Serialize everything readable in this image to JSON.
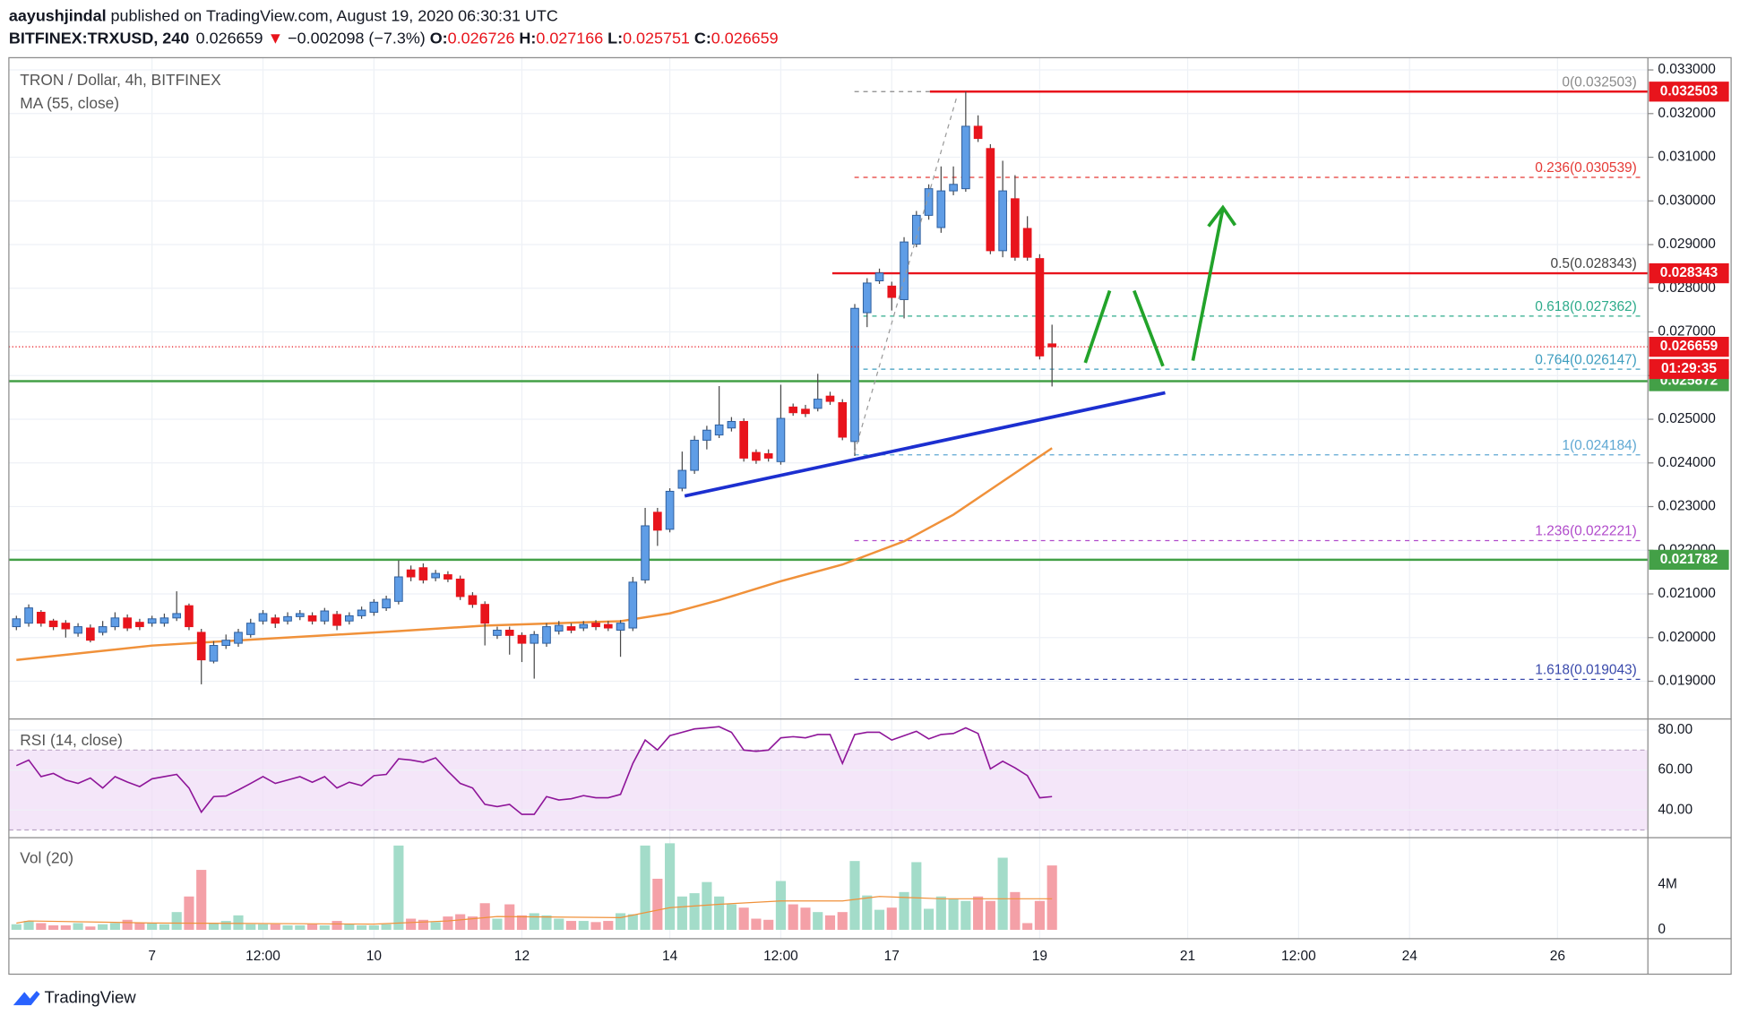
{
  "header": {
    "author": "aayushjindal",
    "published": " published on TradingView.com, August 19, 2020 06:30:31 UTC",
    "symbol": "BITFINEX:TRXUSD, 240",
    "arrow": "▼",
    "change": "−0.002098 (−7.3%)",
    "o": "O:",
    "h": "H:",
    "l": "L:",
    "c": "C:"
  },
  "footer": {
    "brand": "TradingView"
  },
  "chart_data": {
    "type": "candlestick",
    "title": "TRON / Dollar, 4h, BITFINEX",
    "up_color": "#5f9de6",
    "up_border": "#2f5f9e",
    "down_color": "#e8141c",
    "wick_color": "#4a4a4a",
    "x": [
      -11,
      -10,
      -9,
      -8,
      -7,
      -6,
      -5,
      -4,
      -3,
      -2,
      -1,
      0,
      1,
      2,
      3,
      4,
      5,
      6,
      7,
      8,
      9,
      10,
      11,
      12,
      13,
      14,
      15,
      16,
      17,
      18,
      19,
      20,
      21,
      22,
      23,
      24,
      25,
      26,
      27,
      28,
      29,
      30,
      31,
      32,
      33,
      34,
      35,
      36,
      37,
      38,
      39,
      40,
      41,
      42,
      43,
      44,
      45,
      46,
      47,
      48,
      49,
      50,
      51,
      52,
      53,
      54,
      55,
      56,
      57,
      58,
      59,
      60,
      61,
      62,
      63,
      64,
      65,
      66,
      67,
      68,
      69,
      70,
      71,
      72,
      73
    ],
    "open": [
      0.02025,
      0.02033,
      0.02058,
      0.02038,
      0.02033,
      0.0201,
      0.02022,
      0.02012,
      0.02025,
      0.02045,
      0.02035,
      0.02033,
      0.02033,
      0.02045,
      0.02073,
      0.02012,
      0.01946,
      0.01982,
      0.01987,
      0.02007,
      0.02038,
      0.02045,
      0.02038,
      0.02048,
      0.0205,
      0.02038,
      0.02053,
      0.02038,
      0.0205,
      0.02058,
      0.02068,
      0.02083,
      0.02155,
      0.0216,
      0.02137,
      0.02144,
      0.02134,
      0.02096,
      0.02076,
      0.02005,
      0.02017,
      0.02005,
      0.01987,
      0.01987,
      0.02015,
      0.02025,
      0.02022,
      0.02033,
      0.0203,
      0.02017,
      0.02022,
      0.02132,
      0.02287,
      0.02248,
      0.02342,
      0.02383,
      0.02452,
      0.02464,
      0.0248,
      0.02495,
      0.02424,
      0.02421,
      0.02403,
      0.02528,
      0.02523,
      0.02525,
      0.02553,
      0.02538,
      0.02449,
      0.02744,
      0.02817,
      0.02805,
      0.02774,
      0.02901,
      0.02967,
      0.02939,
      0.03023,
      0.03028,
      0.03171,
      0.0312,
      0.02886,
      0.03005,
      0.02937,
      0.02868,
      0.026726
    ],
    "high": [
      0.0205,
      0.02076,
      0.02063,
      0.02043,
      0.0204,
      0.02033,
      0.0203,
      0.02038,
      0.02058,
      0.02053,
      0.02043,
      0.0205,
      0.02055,
      0.02106,
      0.02078,
      0.0202,
      0.01992,
      0.02007,
      0.0202,
      0.02043,
      0.02063,
      0.02053,
      0.02058,
      0.02063,
      0.02058,
      0.02068,
      0.02061,
      0.02058,
      0.02071,
      0.02088,
      0.02096,
      0.02177,
      0.02165,
      0.0217,
      0.02155,
      0.02152,
      0.02142,
      0.02104,
      0.02083,
      0.02025,
      0.02025,
      0.02012,
      0.02015,
      0.02033,
      0.02038,
      0.02033,
      0.02038,
      0.0204,
      0.02038,
      0.0204,
      0.02139,
      0.02297,
      0.02297,
      0.02342,
      0.02426,
      0.02462,
      0.02485,
      0.02576,
      0.02505,
      0.02502,
      0.02431,
      0.02431,
      0.02579,
      0.02536,
      0.02533,
      0.02604,
      0.02563,
      0.02546,
      0.02764,
      0.02823,
      0.02845,
      0.02815,
      0.02917,
      0.02977,
      0.03038,
      0.03079,
      0.03079,
      0.032503,
      0.03196,
      0.0313,
      0.03092,
      0.03059,
      0.02965,
      0.02878,
      0.027166
    ],
    "low": [
      0.02017,
      0.02025,
      0.02025,
      0.02017,
      0.02,
      0.02002,
      0.01989,
      0.02005,
      0.02017,
      0.02015,
      0.02017,
      0.02025,
      0.02025,
      0.02038,
      0.02017,
      0.01893,
      0.01941,
      0.01974,
      0.01979,
      0.02,
      0.0203,
      0.02022,
      0.0203,
      0.0204,
      0.0203,
      0.0203,
      0.02017,
      0.0203,
      0.02043,
      0.0205,
      0.02061,
      0.02076,
      0.02129,
      0.02124,
      0.02129,
      0.02127,
      0.02086,
      0.02068,
      0.01982,
      0.01997,
      0.01961,
      0.01944,
      0.01906,
      0.01979,
      0.02007,
      0.0201,
      0.02015,
      0.02017,
      0.02015,
      0.01956,
      0.02015,
      0.02124,
      0.0221,
      0.02241,
      0.02335,
      0.02375,
      0.02431,
      0.02457,
      0.02472,
      0.02403,
      0.02398,
      0.02403,
      0.02396,
      0.02508,
      0.02505,
      0.02518,
      0.02533,
      0.02452,
      0.02416,
      0.02711,
      0.0281,
      0.02749,
      0.02731,
      0.02894,
      0.02957,
      0.02927,
      0.03013,
      0.03021,
      0.03135,
      0.02878,
      0.02871,
      0.02863,
      0.02863,
      0.02637,
      0.025751
    ],
    "close": [
      0.02043,
      0.02068,
      0.02033,
      0.02025,
      0.0202,
      0.02025,
      0.01994,
      0.02025,
      0.02045,
      0.02022,
      0.02025,
      0.02043,
      0.02045,
      0.02055,
      0.02025,
      0.01949,
      0.01982,
      0.01994,
      0.02012,
      0.02033,
      0.02055,
      0.02033,
      0.02048,
      0.02055,
      0.02038,
      0.02061,
      0.02028,
      0.0205,
      0.02063,
      0.02081,
      0.02088,
      0.02139,
      0.02139,
      0.02132,
      0.02147,
      0.02134,
      0.02094,
      0.02076,
      0.02033,
      0.02017,
      0.02005,
      0.01987,
      0.02007,
      0.02025,
      0.02028,
      0.02017,
      0.0203,
      0.02025,
      0.02022,
      0.02033,
      0.02127,
      0.02256,
      0.02246,
      0.02335,
      0.02383,
      0.02452,
      0.02475,
      0.02487,
      0.02495,
      0.02411,
      0.02406,
      0.02411,
      0.02502,
      0.02515,
      0.02513,
      0.02546,
      0.02541,
      0.02459,
      0.02754,
      0.02812,
      0.02835,
      0.02779,
      0.02906,
      0.02967,
      0.03028,
      0.03023,
      0.03038,
      0.03171,
      0.03143,
      0.02886,
      0.03023,
      0.02871,
      0.02871,
      0.02645,
      0.026659
    ],
    "xlim": [
      -11.61,
      121.33
    ],
    "xticks": [
      {
        "value": 0,
        "label": "7"
      },
      {
        "value": 9,
        "label": "12:00"
      },
      {
        "value": 18,
        "label": "10"
      },
      {
        "value": 30,
        "label": "12"
      },
      {
        "value": 42,
        "label": "14"
      },
      {
        "value": 51,
        "label": "12:00"
      },
      {
        "value": 60,
        "label": "17"
      },
      {
        "value": 72,
        "label": "19"
      },
      {
        "value": 84,
        "label": "21"
      },
      {
        "value": 93,
        "label": "12:00"
      },
      {
        "value": 102,
        "label": "24"
      },
      {
        "value": 114,
        "label": "26"
      }
    ],
    "ylim": [
      0.018136,
      0.03328
    ],
    "yticks": [
      {
        "value": 0.019,
        "label": "0.019000"
      },
      {
        "value": 0.02,
        "label": "0.020000"
      },
      {
        "value": 0.021,
        "label": "0.021000"
      },
      {
        "value": 0.022,
        "label": "0.022000"
      },
      {
        "value": 0.023,
        "label": "0.023000"
      },
      {
        "value": 0.024,
        "label": "0.024000"
      },
      {
        "value": 0.025,
        "label": "0.025000"
      },
      {
        "value": 0.026,
        "label": "0.026000"
      },
      {
        "value": 0.027,
        "label": "0.027000"
      },
      {
        "value": 0.028,
        "label": "0.028000"
      },
      {
        "value": 0.029,
        "label": "0.029000"
      },
      {
        "value": 0.03,
        "label": "0.030000"
      },
      {
        "value": 0.031,
        "label": "0.031000"
      },
      {
        "value": 0.032,
        "label": "0.032000"
      },
      {
        "value": 0.033,
        "label": "0.033000"
      }
    ],
    "grid": true,
    "ma": {
      "name": "MA (55, close)",
      "color": "#f0913a",
      "x": [
        -11,
        0,
        9,
        20,
        27,
        38,
        42,
        46,
        51,
        56,
        61,
        65,
        69,
        73
      ],
      "values": [
        0.019487,
        0.019817,
        0.01997,
        0.020148,
        0.020275,
        0.020376,
        0.020554,
        0.020859,
        0.021291,
        0.021672,
        0.022205,
        0.022815,
        0.023577,
        0.024339
      ]
    },
    "fib": [
      {
        "label": "0(0.032503)",
        "value": 0.032503,
        "color": "#8a8a8a"
      },
      {
        "label": "0.236(0.030539)",
        "value": 0.030539,
        "color": "#e53935"
      },
      {
        "label": "0.5(0.028343)",
        "value": 0.028343,
        "color": "#444444"
      },
      {
        "label": "0.618(0.027362)",
        "value": 0.027362,
        "color": "#2eab8b"
      },
      {
        "label": "0.764(0.026147)",
        "value": 0.026147,
        "color": "#3d9dbf"
      },
      {
        "label": "1(0.024184)",
        "value": 0.024184,
        "color": "#5fa8d3"
      },
      {
        "label": "1.236(0.022221)",
        "value": 0.022221,
        "color": "#b14bcb"
      },
      {
        "label": "1.618(0.019043)",
        "value": 0.019043,
        "color": "#3949ab"
      }
    ],
    "horizontal_lines": [
      {
        "value": 0.032503,
        "color": "#e8141c"
      },
      {
        "value": 0.028343,
        "color": "#e8141c"
      },
      {
        "value": 0.025872,
        "color": "#43a047"
      },
      {
        "value": 0.021782,
        "color": "#43a047"
      }
    ],
    "price_line_color": "#e8141c",
    "countdown": "01:29:35",
    "rsi": {
      "type": "line",
      "name": "RSI (14, close)",
      "color": "#8e1599",
      "band": [
        30,
        70
      ],
      "band_color": "#f0dcf7",
      "ylim": [
        26.11,
        85.56
      ],
      "yticks": [
        {
          "value": 40,
          "label": "40.00"
        },
        {
          "value": 60,
          "label": "60.00"
        },
        {
          "value": 80,
          "label": "80.00"
        }
      ],
      "values": [
        62.2,
        65,
        56.7,
        58.3,
        55,
        53.3,
        56,
        51,
        56.7,
        54,
        51.7,
        55.6,
        56.7,
        57.8,
        51,
        38.9,
        46.7,
        47,
        50,
        53.3,
        56.7,
        53.3,
        55,
        56.7,
        53.9,
        56.7,
        51,
        53.9,
        52.2,
        57.2,
        57.8,
        65.6,
        65,
        63.9,
        66.1,
        59.4,
        53.3,
        51,
        42.8,
        41.7,
        42.8,
        37.8,
        37.8,
        46.7,
        45,
        45.6,
        47.2,
        46.1,
        46.1,
        47.8,
        63.3,
        75,
        70,
        77.2,
        78.9,
        80.6,
        81.1,
        81.7,
        78.9,
        70,
        69.4,
        70,
        76.1,
        76.7,
        76.1,
        77.8,
        77.8,
        63.3,
        77.8,
        78.9,
        78.9,
        75,
        77.2,
        79.4,
        75.6,
        77.8,
        78.3,
        81.1,
        78.3,
        60.6,
        64.4,
        61.1,
        57.2,
        46.1,
        46.7
      ]
    },
    "volume": {
      "type": "bar",
      "name": "Vol (20)",
      "up_color": "#a3dcc9",
      "down_color": "#f4a0a7",
      "ylim": [
        -780000,
        8100000
      ],
      "yticks": [
        0,
        {
          "value": 4000000,
          "label": "4M"
        }
      ],
      "values": [
        490000,
        780000,
        590000,
        390000,
        390000,
        590000,
        290000,
        490000,
        590000,
        880000,
        590000,
        590000,
        490000,
        1560000,
        2930000,
        5270000,
        590000,
        780000,
        1270000,
        490000,
        490000,
        490000,
        390000,
        390000,
        490000,
        390000,
        780000,
        490000,
        390000,
        390000,
        490000,
        7410000,
        980000,
        880000,
        680000,
        1170000,
        1370000,
        1170000,
        2340000,
        980000,
        2240000,
        1270000,
        1460000,
        1270000,
        980000,
        780000,
        780000,
        680000,
        780000,
        1460000,
        1370000,
        7410000,
        4490000,
        7610000,
        2930000,
        3220000,
        4200000,
        2930000,
        2240000,
        1950000,
        980000,
        880000,
        4290000,
        2240000,
        1950000,
        1560000,
        1270000,
        1560000,
        6050000,
        3020000,
        1760000,
        1950000,
        3320000,
        5950000,
        1850000,
        2930000,
        2730000,
        2540000,
        2930000,
        2540000,
        6340000,
        3320000,
        590000,
        2540000,
        5660000
      ],
      "ma": {
        "color": "#f0913a",
        "x": [
          -11,
          -10,
          0,
          18,
          24,
          28,
          38,
          42,
          46,
          51,
          56,
          59,
          64,
          73
        ],
        "values": [
          590000,
          780000,
          600000,
          500000,
          780000,
          1170000,
          1070000,
          1950000,
          2240000,
          2540000,
          2540000,
          2930000,
          2730000,
          2730000
        ]
      }
    }
  }
}
